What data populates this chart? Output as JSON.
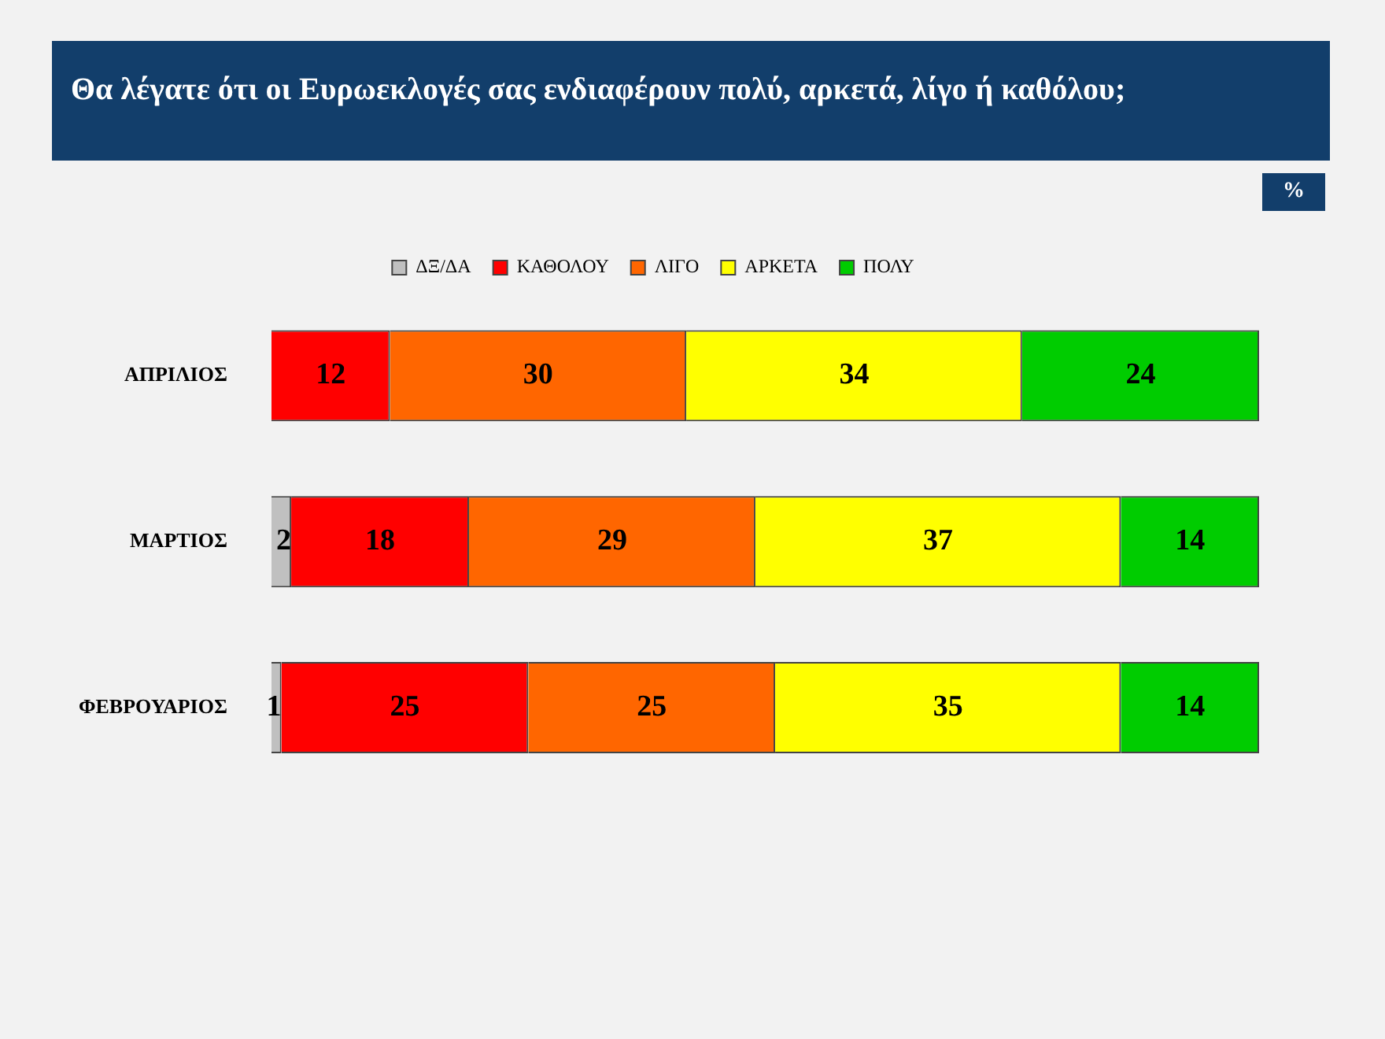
{
  "chart_data": {
    "type": "bar",
    "orientation": "horizontal",
    "stacked": true,
    "title": "Θα λέγατε ότι οι Ευρωεκλογές σας ενδιαφέρουν πολύ, αρκετά, λίγο ή καθόλου;",
    "annotations": [
      "%"
    ],
    "categories": [
      "ΑΠΡΙΛΙΟΣ",
      "ΜΑΡΤΙΟΣ",
      "ΦΕΒΡΟΥΑΡΙΟΣ"
    ],
    "series": [
      {
        "name": "ΔΞ/ΔΑ",
        "color": "#c0c0c0",
        "values": [
          null,
          2,
          1
        ]
      },
      {
        "name": "ΚΑΘΟΛΟΥ",
        "color": "#ff0000",
        "values": [
          12,
          18,
          25
        ]
      },
      {
        "name": "ΛΙΓΟ",
        "color": "#ff6600",
        "values": [
          30,
          29,
          25
        ]
      },
      {
        "name": "ΑΡΚΕΤΑ",
        "color": "#ffff00",
        "values": [
          34,
          37,
          35
        ]
      },
      {
        "name": "ΠΟΛΥ",
        "color": "#00cc00",
        "values": [
          24,
          14,
          14
        ]
      }
    ],
    "data_labels": true,
    "legend": "top",
    "grid": false,
    "tick_labels": "y"
  }
}
